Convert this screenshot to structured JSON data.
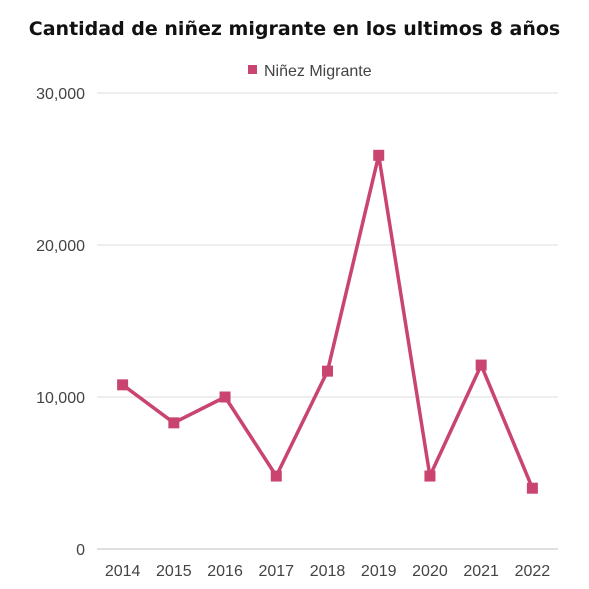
{
  "chart_data": {
    "type": "line",
    "title": "Cantidad de niñez migrante en los ultimos 8 años",
    "xlabel": "",
    "ylabel": "",
    "categories": [
      "2014",
      "2015",
      "2016",
      "2017",
      "2018",
      "2019",
      "2020",
      "2021",
      "2022"
    ],
    "series": [
      {
        "name": "Niñez Migrante",
        "color": "#c9446f",
        "values": [
          10800,
          8300,
          10000,
          4800,
          11700,
          25900,
          4800,
          12100,
          4000
        ]
      }
    ],
    "ylim": [
      0,
      30000
    ],
    "yticks": [
      0,
      10000,
      20000,
      30000
    ],
    "ytick_labels": [
      "0",
      "10,000",
      "20,000",
      "30,000"
    ],
    "grid": true,
    "legend_position": "top-center"
  }
}
